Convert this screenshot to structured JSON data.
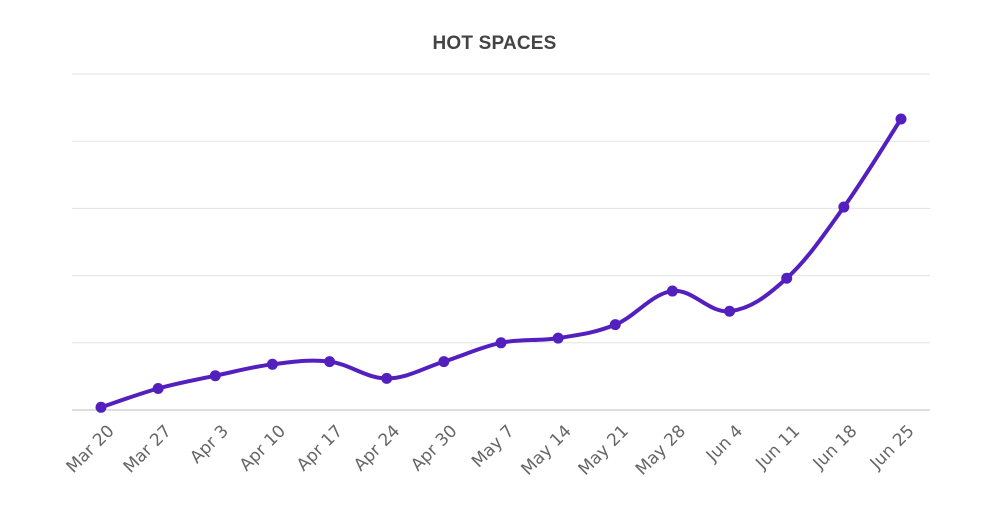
{
  "chart_data": {
    "type": "line",
    "title": "HOT SPACES",
    "xlabel": "",
    "ylabel": "",
    "categories": [
      "Mar 20",
      "Mar 27",
      "Apr 3",
      "Apr 10",
      "Apr 17",
      "Apr 24",
      "Apr 30",
      "May 7",
      "May 14",
      "May 21",
      "May 28",
      "Jun 4",
      "Jun 11",
      "Jun 18",
      "Jun 25"
    ],
    "series": [
      {
        "values": [
          0.4,
          3.2,
          5.1,
          6.8,
          7.2,
          4.7,
          7.2,
          10.0,
          10.7,
          12.7,
          17.7,
          14.7,
          19.6,
          30.2,
          43.3
        ],
        "color": "#5320bf"
      }
    ],
    "ylim": [
      0,
      50
    ],
    "y_gridlines": 5,
    "grid": true,
    "legend": "none",
    "y_tick_labels_shown": false
  }
}
